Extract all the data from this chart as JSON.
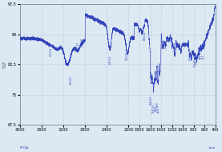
{
  "xlabel_left": "FTGA",
  "xlabel_right": "1cm",
  "ylabel": "%T",
  "xmin": 400,
  "xmax": 4000,
  "ymin": 67.5,
  "ymax": 97.5,
  "yticks": [
    67.5,
    75,
    82.5,
    90,
    97.5
  ],
  "xticks": [
    4000,
    3600,
    3200,
    2800,
    2400,
    2000,
    1800,
    1600,
    1400,
    1200,
    1000,
    800,
    600,
    400
  ],
  "bg_color": "#dce8f2",
  "line_color": "#3344bb",
  "grid_color": "#99aacc",
  "border_color": "#7799aa",
  "ann_color": "#3344bb"
}
